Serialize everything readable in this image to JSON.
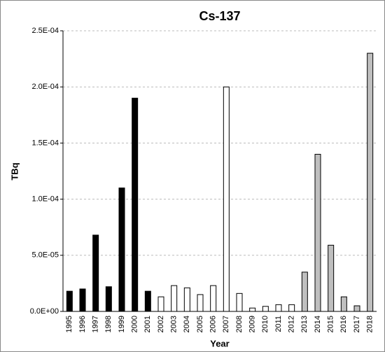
{
  "chart_data": {
    "type": "bar",
    "title": "Cs-137",
    "x_label": "Year",
    "y_label": "TBq",
    "categories": [
      "1995",
      "1996",
      "1997",
      "1998",
      "1999",
      "2000",
      "2001",
      "2002",
      "2003",
      "2004",
      "2005",
      "2006",
      "2007",
      "2008",
      "2009",
      "2010",
      "2011",
      "2012",
      "2013",
      "2014",
      "2015",
      "2016",
      "2017",
      "2018"
    ],
    "values": [
      1.8e-05,
      2e-05,
      6.8e-05,
      2.2e-05,
      0.00011,
      0.00019,
      1.8e-05,
      1.3e-05,
      2.3e-05,
      2.1e-05,
      1.5e-05,
      2.3e-05,
      0.0002,
      1.6e-05,
      3e-06,
      4.5e-06,
      6e-06,
      6e-06,
      3.5e-05,
      0.00014,
      5.9e-05,
      1.3e-05,
      5e-06,
      0.00023
    ],
    "colors": [
      "#000000",
      "#000000",
      "#000000",
      "#000000",
      "#000000",
      "#000000",
      "#000000",
      "#ffffff",
      "#ffffff",
      "#ffffff",
      "#ffffff",
      "#ffffff",
      "#ffffff",
      "#ffffff",
      "#ffffff",
      "#ffffff",
      "#ffffff",
      "#ffffff",
      "#bfbfbf",
      "#bfbfbf",
      "#bfbfbf",
      "#bfbfbf",
      "#bfbfbf",
      "#bfbfbf"
    ],
    "ylim": [
      0,
      0.00025
    ],
    "yticks": [
      {
        "value": 0,
        "label": "0.0E+00"
      },
      {
        "value": 5e-05,
        "label": "5.0E-05"
      },
      {
        "value": 0.0001,
        "label": "1.0E-04"
      },
      {
        "value": 0.00015,
        "label": "1.5E-04"
      },
      {
        "value": 0.0002,
        "label": "2.0E-04"
      },
      {
        "value": 0.00025,
        "label": "2.5E-04"
      }
    ],
    "grid": true
  }
}
